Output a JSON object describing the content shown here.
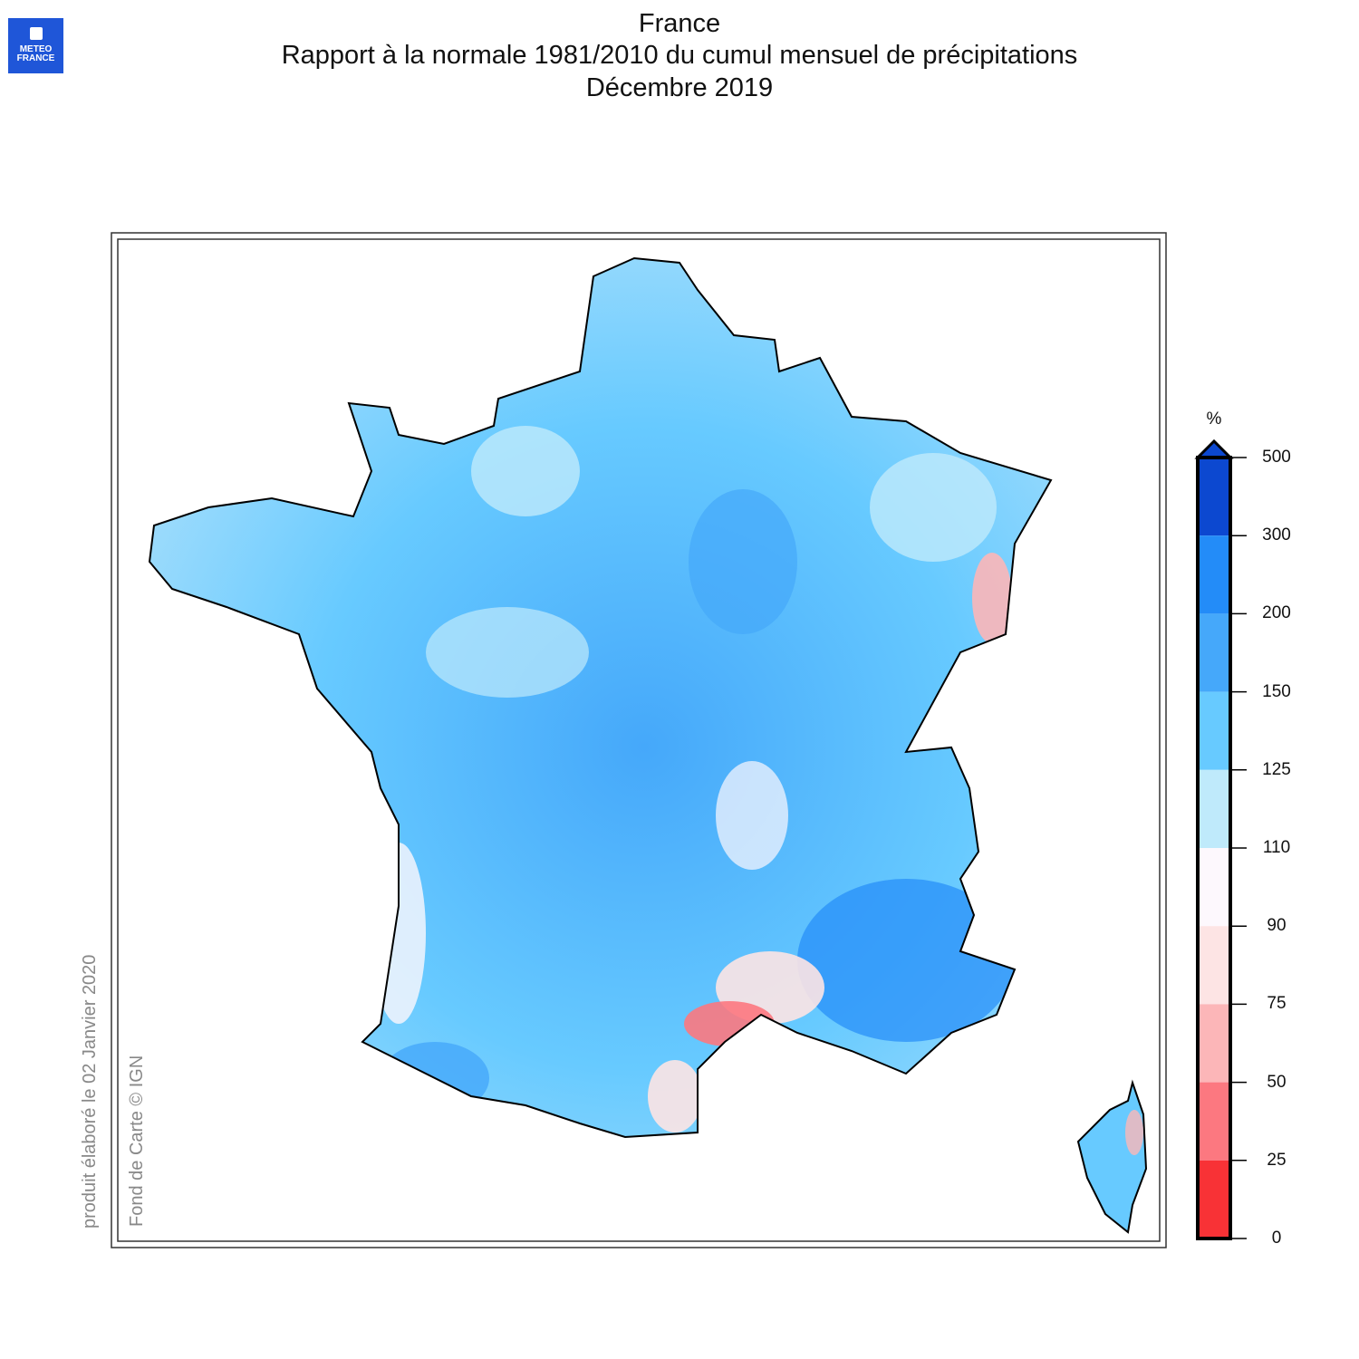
{
  "header": {
    "region": "France",
    "title": "Rapport à la normale 1981/2010 du cumul mensuel de précipitations",
    "period": "Décembre 2019"
  },
  "logo": {
    "text": "METEO FRANCE",
    "color": "#1f56d8"
  },
  "credits": {
    "produced": "produit élaboré le 02 Janvier 2020",
    "basemap": "Fond de Carte © IGN"
  },
  "legend": {
    "unit": "%",
    "ticks": [
      "500",
      "300",
      "200",
      "150",
      "125",
      "110",
      "90",
      "75",
      "50",
      "25",
      "0"
    ],
    "colors": [
      "#0c48d0",
      "#238cf8",
      "#45a8fa",
      "#67caff",
      "#bfeafb",
      "#fdf8fd",
      "#fde4e4",
      "#fcb6b8",
      "#fc7880",
      "#f83236"
    ],
    "open_top": true
  },
  "map": {
    "dominant_class": "125-200",
    "dry_area_colors": [
      "#fc7880",
      "#fcb6b8"
    ],
    "river_color": "#2ee6f0"
  }
}
